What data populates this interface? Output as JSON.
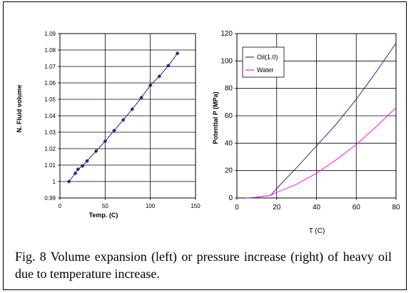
{
  "caption": "Fig. 8 Volume expansion (left) or pressure increase (right) of heavy oil due to temperature increase.",
  "colors": {
    "left_series": "#1f2a78",
    "oil": "#2e2e8a",
    "water": "#e81ce0",
    "grid": "#000000"
  },
  "chart_data": [
    {
      "type": "line",
      "title": "",
      "xlabel": "Temp. (C)",
      "ylabel": "N. Fluid volume",
      "xlim": [
        0,
        150
      ],
      "ylim": [
        0.99,
        1.09
      ],
      "xticks": [
        "0",
        "50",
        "100",
        "150"
      ],
      "yticks": [
        "0.99",
        "1",
        "1.01",
        "1.02",
        "1.03",
        "1.04",
        "1.05",
        "1.06",
        "1.07",
        "1.08",
        "1.09"
      ],
      "grid": true,
      "series": [
        {
          "marker": "diamond",
          "x": [
            10,
            17,
            20,
            25,
            30,
            40,
            50,
            60,
            70,
            80,
            90,
            100,
            110,
            120,
            130
          ],
          "y": [
            1.0,
            1.005,
            1.0075,
            1.0095,
            1.0125,
            1.0185,
            1.0245,
            1.031,
            1.0375,
            1.044,
            1.051,
            1.0585,
            1.064,
            1.0705,
            1.078
          ]
        }
      ]
    },
    {
      "type": "line",
      "title": "",
      "xlabel": "T (C)",
      "ylabel": "Potential P (MPa)",
      "xlim": [
        0,
        80
      ],
      "ylim": [
        0,
        120
      ],
      "xticks": [
        "0",
        "20",
        "40",
        "60",
        "80"
      ],
      "yticks": [
        "0",
        "20",
        "40",
        "60",
        "80",
        "100",
        "120"
      ],
      "grid": true,
      "legend": "top-left",
      "series": [
        {
          "name": "Oil(1.0)",
          "x": [
            5,
            10,
            15,
            17,
            20,
            30,
            40,
            50,
            60,
            70,
            80
          ],
          "y": [
            0,
            0.5,
            1.5,
            2,
            7,
            22,
            38,
            54,
            72,
            92,
            113
          ]
        },
        {
          "name": "Water",
          "x": [
            5,
            10,
            15,
            17,
            20,
            30,
            40,
            50,
            60,
            70,
            80
          ],
          "y": [
            0,
            0.5,
            1.5,
            2,
            4,
            10,
            18,
            28,
            39,
            52,
            66
          ]
        }
      ]
    }
  ]
}
